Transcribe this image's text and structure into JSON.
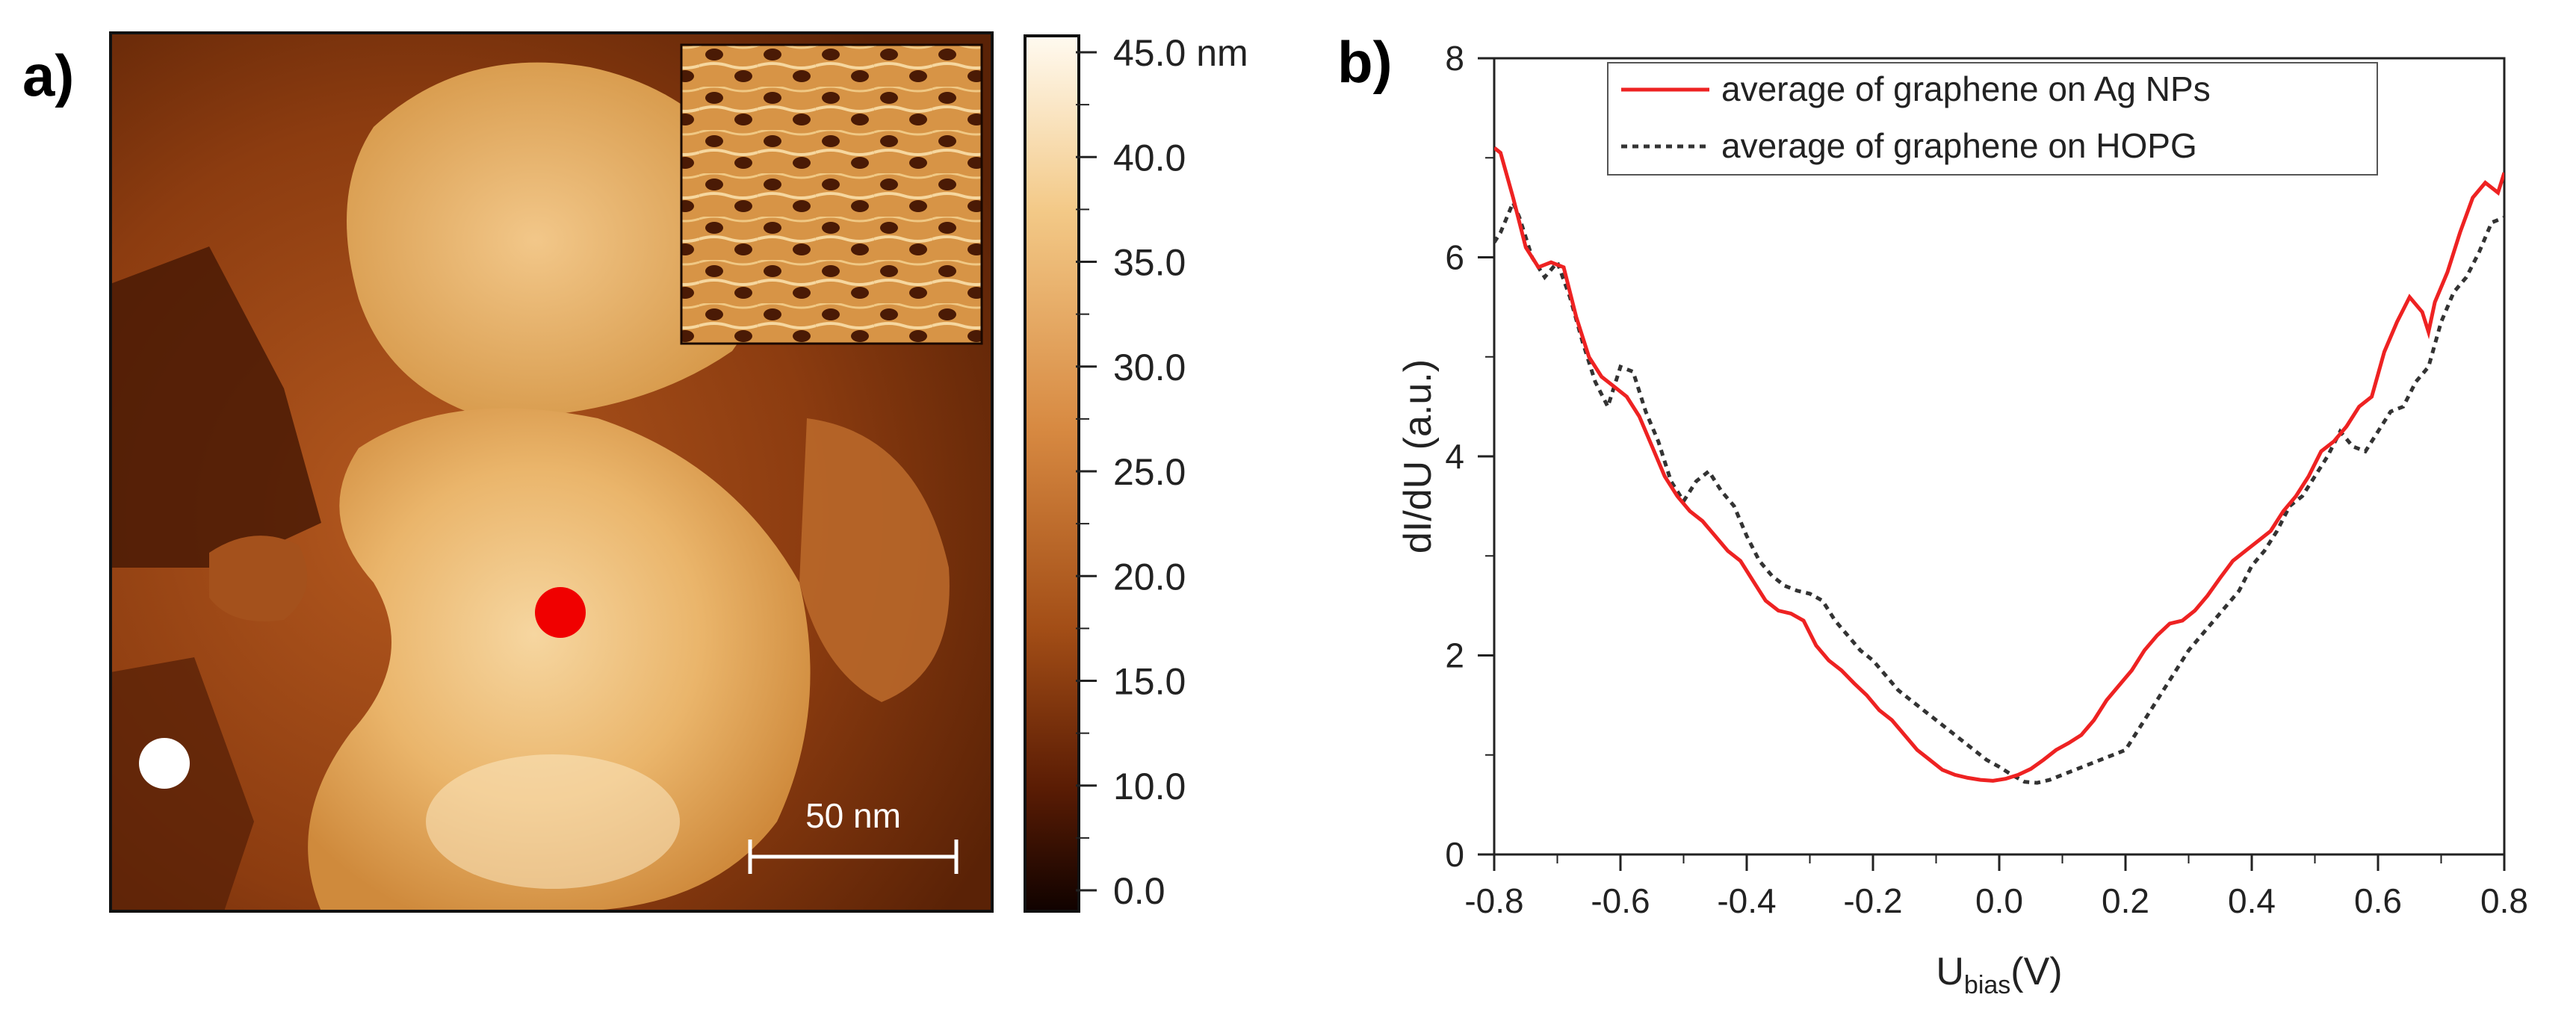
{
  "panel_a": {
    "label": "a)",
    "scale_bar": {
      "label": "50 nm"
    },
    "markers": [
      {
        "name": "red-dot",
        "color": "#f00000"
      },
      {
        "name": "white-dot",
        "color": "#ffffff"
      }
    ],
    "colorbar": {
      "ticks": [
        "45.0 nm",
        "40.0",
        "35.0",
        "30.0",
        "25.0",
        "20.0",
        "15.0",
        "10.0",
        "0.0"
      ],
      "colors": [
        "#fffaf0",
        "#f3c987",
        "#d78941",
        "#a24d16",
        "#5a1c04",
        "#100200"
      ]
    }
  },
  "panel_b": {
    "label": "b)"
  },
  "chart_data": {
    "type": "line",
    "title": "",
    "xlabel": "U",
    "xlabel_sub": "bias",
    "xlabel_unit": "(V)",
    "ylabel": "dI/dU (a.u.)",
    "xlim": [
      -0.8,
      0.8
    ],
    "ylim": [
      0,
      8
    ],
    "xticks": [
      -0.8,
      -0.6,
      -0.4,
      -0.2,
      0.0,
      0.2,
      0.4,
      0.6,
      0.8
    ],
    "xtick_labels": [
      "-0.8",
      "-0.6",
      "-0.4",
      "-0.2",
      "0.0",
      "0.2",
      "0.4",
      "0.6",
      "0.8"
    ],
    "yticks": [
      0,
      2,
      4,
      6,
      8
    ],
    "ytick_labels": [
      "0",
      "2",
      "4",
      "6",
      "8"
    ],
    "legend_position": "top-right",
    "series": [
      {
        "name": "average of graphene on Ag NPs",
        "color": "#ee2222",
        "style": "solid",
        "x": [
          -0.8,
          -0.79,
          -0.77,
          -0.75,
          -0.73,
          -0.71,
          -0.69,
          -0.67,
          -0.65,
          -0.63,
          -0.61,
          -0.59,
          -0.57,
          -0.55,
          -0.53,
          -0.51,
          -0.49,
          -0.47,
          -0.45,
          -0.43,
          -0.41,
          -0.39,
          -0.37,
          -0.35,
          -0.33,
          -0.31,
          -0.29,
          -0.27,
          -0.25,
          -0.23,
          -0.21,
          -0.19,
          -0.17,
          -0.15,
          -0.13,
          -0.11,
          -0.09,
          -0.07,
          -0.05,
          -0.03,
          -0.01,
          0.01,
          0.03,
          0.05,
          0.07,
          0.09,
          0.11,
          0.13,
          0.15,
          0.17,
          0.19,
          0.21,
          0.23,
          0.25,
          0.27,
          0.29,
          0.31,
          0.33,
          0.35,
          0.37,
          0.39,
          0.41,
          0.43,
          0.45,
          0.47,
          0.49,
          0.51,
          0.53,
          0.55,
          0.57,
          0.59,
          0.61,
          0.63,
          0.65,
          0.67,
          0.68,
          0.69,
          0.71,
          0.73,
          0.75,
          0.77,
          0.79,
          0.8
        ],
        "values": [
          7.1,
          7.05,
          6.6,
          6.1,
          5.9,
          5.95,
          5.9,
          5.4,
          5.0,
          4.8,
          4.7,
          4.6,
          4.4,
          4.1,
          3.8,
          3.6,
          3.45,
          3.35,
          3.2,
          3.05,
          2.95,
          2.75,
          2.55,
          2.45,
          2.42,
          2.35,
          2.1,
          1.95,
          1.85,
          1.72,
          1.6,
          1.45,
          1.35,
          1.2,
          1.05,
          0.95,
          0.85,
          0.8,
          0.77,
          0.75,
          0.74,
          0.76,
          0.8,
          0.86,
          0.95,
          1.05,
          1.12,
          1.2,
          1.35,
          1.55,
          1.7,
          1.85,
          2.05,
          2.2,
          2.32,
          2.35,
          2.45,
          2.6,
          2.78,
          2.95,
          3.05,
          3.15,
          3.25,
          3.45,
          3.6,
          3.8,
          4.05,
          4.15,
          4.3,
          4.5,
          4.6,
          5.05,
          5.35,
          5.6,
          5.45,
          5.25,
          5.55,
          5.85,
          6.25,
          6.6,
          6.75,
          6.65,
          6.85
        ]
      },
      {
        "name": "average of graphene on HOPG",
        "color": "#333333",
        "style": "dotted",
        "x": [
          -0.8,
          -0.79,
          -0.77,
          -0.76,
          -0.74,
          -0.72,
          -0.7,
          -0.68,
          -0.66,
          -0.64,
          -0.62,
          -0.6,
          -0.58,
          -0.56,
          -0.54,
          -0.52,
          -0.5,
          -0.48,
          -0.46,
          -0.44,
          -0.42,
          -0.4,
          -0.38,
          -0.36,
          -0.34,
          -0.32,
          -0.3,
          -0.28,
          -0.26,
          -0.24,
          -0.22,
          -0.2,
          -0.18,
          -0.16,
          -0.14,
          -0.12,
          -0.1,
          -0.08,
          -0.06,
          -0.04,
          -0.02,
          0.0,
          0.02,
          0.04,
          0.06,
          0.08,
          0.1,
          0.12,
          0.14,
          0.16,
          0.18,
          0.2,
          0.22,
          0.24,
          0.26,
          0.28,
          0.3,
          0.32,
          0.34,
          0.36,
          0.38,
          0.4,
          0.42,
          0.44,
          0.46,
          0.48,
          0.5,
          0.52,
          0.54,
          0.56,
          0.58,
          0.6,
          0.62,
          0.64,
          0.66,
          0.68,
          0.7,
          0.72,
          0.74,
          0.76,
          0.78,
          0.8
        ],
        "values": [
          6.15,
          6.25,
          6.55,
          6.4,
          6.0,
          5.8,
          5.95,
          5.6,
          5.15,
          4.75,
          4.5,
          4.9,
          4.85,
          4.45,
          4.15,
          3.75,
          3.55,
          3.75,
          3.85,
          3.65,
          3.5,
          3.2,
          2.95,
          2.8,
          2.7,
          2.65,
          2.62,
          2.55,
          2.35,
          2.2,
          2.05,
          1.95,
          1.8,
          1.65,
          1.55,
          1.45,
          1.35,
          1.25,
          1.15,
          1.05,
          0.95,
          0.88,
          0.8,
          0.73,
          0.72,
          0.75,
          0.8,
          0.85,
          0.9,
          0.95,
          1.0,
          1.05,
          1.25,
          1.45,
          1.65,
          1.85,
          2.05,
          2.2,
          2.35,
          2.5,
          2.65,
          2.9,
          3.05,
          3.25,
          3.5,
          3.6,
          3.8,
          4.0,
          4.25,
          4.1,
          4.05,
          4.25,
          4.45,
          4.5,
          4.75,
          4.9,
          5.35,
          5.65,
          5.8,
          6.05,
          6.35,
          6.4
        ]
      }
    ]
  }
}
